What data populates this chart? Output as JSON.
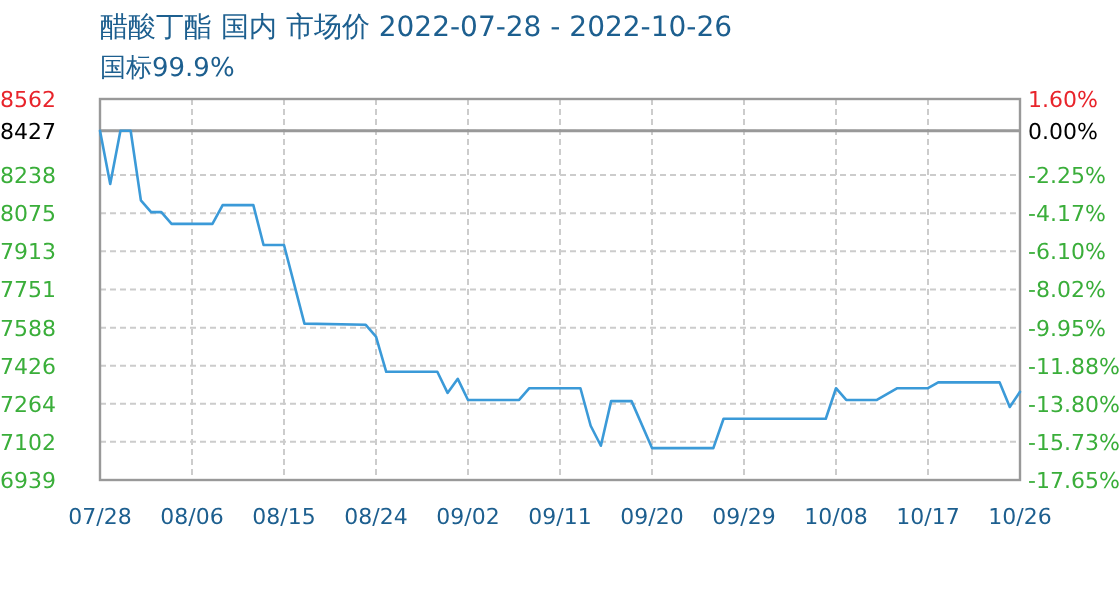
{
  "chart_data": {
    "type": "line",
    "title": "醋酸丁酯 国内 市场价 2022-07-28 - 2022-10-26",
    "subtitle": "国标99.9%",
    "x": [
      "2022-07-28",
      "2022-07-29",
      "2022-07-30",
      "2022-07-31",
      "2022-08-01",
      "2022-08-02",
      "2022-08-03",
      "2022-08-04",
      "2022-08-08",
      "2022-08-09",
      "2022-08-12",
      "2022-08-13",
      "2022-08-15",
      "2022-08-17",
      "2022-08-23",
      "2022-08-24",
      "2022-08-25",
      "2022-08-30",
      "2022-08-31",
      "2022-09-01",
      "2022-09-02",
      "2022-09-07",
      "2022-09-08",
      "2022-09-13",
      "2022-09-14",
      "2022-09-15",
      "2022-09-16",
      "2022-09-18",
      "2022-09-20",
      "2022-09-26",
      "2022-09-27",
      "2022-10-07",
      "2022-10-08",
      "2022-10-09",
      "2022-10-12",
      "2022-10-14",
      "2022-10-17",
      "2022-10-18",
      "2022-10-24",
      "2022-10-25",
      "2022-10-26"
    ],
    "series": [
      {
        "color": "#3b9ad8",
        "values": [
          8427,
          8200,
          8427,
          8427,
          8130,
          8080,
          8080,
          8030,
          8030,
          8110,
          8110,
          7940,
          7940,
          7605,
          7600,
          7550,
          7400,
          7400,
          7310,
          7370,
          7280,
          7280,
          7330,
          7330,
          7170,
          7085,
          7275,
          7275,
          7075,
          7075,
          7200,
          7200,
          7330,
          7280,
          7280,
          7330,
          7330,
          7355,
          7355,
          7250,
          7315
        ]
      }
    ],
    "xlim": [
      "2022-07-28",
      "2022-10-26"
    ],
    "xticks": [
      {
        "value": "2022-07-28",
        "label": "07/28"
      },
      {
        "value": "2022-08-06",
        "label": "08/06"
      },
      {
        "value": "2022-08-15",
        "label": "08/15"
      },
      {
        "value": "2022-08-24",
        "label": "08/24"
      },
      {
        "value": "2022-09-02",
        "label": "09/02"
      },
      {
        "value": "2022-09-11",
        "label": "09/11"
      },
      {
        "value": "2022-09-20",
        "label": "09/20"
      },
      {
        "value": "2022-09-29",
        "label": "09/29"
      },
      {
        "value": "2022-10-08",
        "label": "10/08"
      },
      {
        "value": "2022-10-17",
        "label": "10/17"
      },
      {
        "value": "2022-10-26",
        "label": "10/26"
      }
    ],
    "ylim": [
      6939,
      8562
    ],
    "yticks": [
      6939,
      7102,
      7264,
      7426,
      7588,
      7751,
      7913,
      8075,
      8238,
      8427,
      8562
    ],
    "y2lim": [
      -17.65,
      1.6
    ],
    "y2ticks": [
      {
        "value": -17.65,
        "label": "-17.65%"
      },
      {
        "value": -15.73,
        "label": "-15.73%"
      },
      {
        "value": -13.8,
        "label": "-13.80%"
      },
      {
        "value": -11.88,
        "label": "-11.88%"
      },
      {
        "value": -9.95,
        "label": "-9.95%"
      },
      {
        "value": -8.02,
        "label": "-8.02%"
      },
      {
        "value": -6.1,
        "label": "-6.10%"
      },
      {
        "value": -4.17,
        "label": "-4.17%"
      },
      {
        "value": -2.25,
        "label": "-2.25%"
      },
      {
        "value": 0.0,
        "label": "0.00%"
      },
      {
        "value": 1.6,
        "label": "1.60%"
      }
    ],
    "ref_lines": [
      {
        "axis": "y",
        "value": 8427,
        "color": "#999999",
        "line_style": "solid"
      }
    ],
    "grid": true,
    "marker": "none",
    "line_style": "solid"
  }
}
